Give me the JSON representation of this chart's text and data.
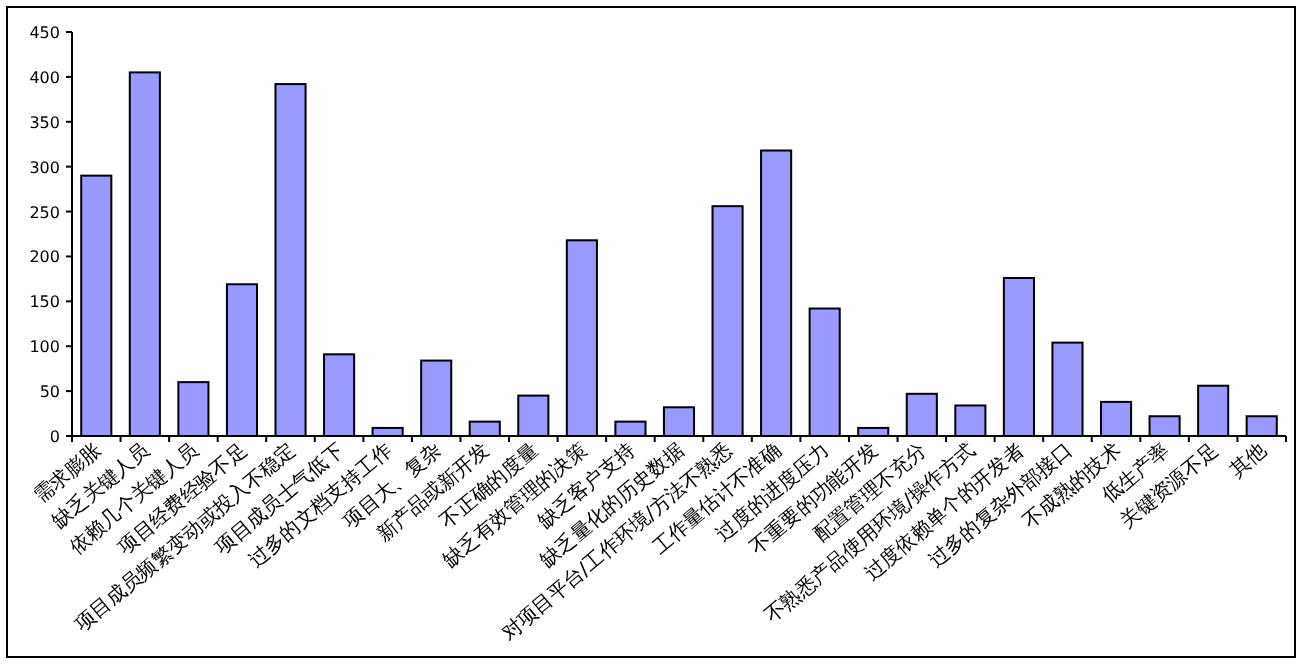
{
  "chart_data": {
    "type": "bar",
    "color": "#9999ff",
    "ylim": [
      0,
      450
    ],
    "yticks": [
      0,
      50,
      100,
      150,
      200,
      250,
      300,
      350,
      400,
      450
    ],
    "grid": false,
    "categories": [
      "需求膨胀",
      "缺乏关键人员",
      "依赖几个关键人员",
      "项目经费经验不足",
      "项目成员频繁变动或投入不稳定",
      "项目成员士气低下",
      "过多的文档支持工作",
      "项目大、复杂",
      "新产品或新开发",
      "不正确的度量",
      "缺乏有效管理的决策",
      "缺乏客户支持",
      "缺乏量化的历史数据",
      "对项目平台/工作环境/方法不熟悉",
      "工作量估计不准确",
      "过度的进度压力",
      "不重要的功能开发",
      "配置管理不充分",
      "不熟悉产品使用环境/操作方式",
      "过度依赖单个的开发者",
      "过多的复杂外部接口",
      "不成熟的技术",
      "低生产率",
      "关键资源不足",
      "其他"
    ],
    "values": [
      290,
      405,
      60,
      169,
      392,
      91,
      9,
      84,
      16,
      45,
      218,
      16,
      32,
      256,
      318,
      142,
      9,
      47,
      34,
      176,
      104,
      38,
      22,
      56,
      22
    ]
  }
}
